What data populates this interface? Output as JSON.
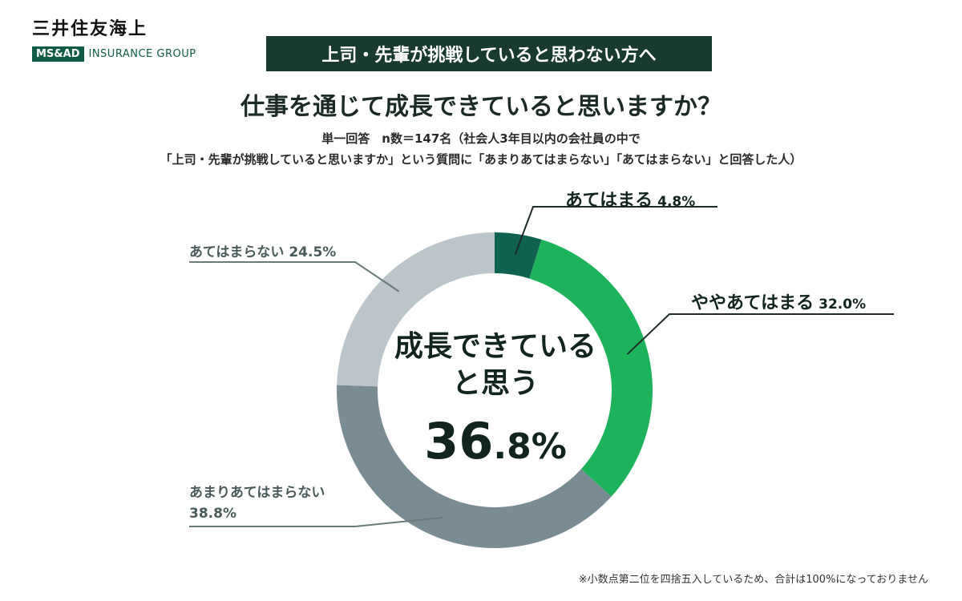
{
  "brand": {
    "name_jp": "三井住友海上",
    "logo_box": "MS&AD",
    "group": "INSURANCE GROUP"
  },
  "banner": "上司・先輩が挑戦していると思わない方へ",
  "question": "仕事を通じて成長できていると思いますか？",
  "subtitle_1": "単一回答　n数＝147名（社会人3年目以内の会社員の中で",
  "subtitle_2": "「上司・先輩が挑戦していると思いますか」という質問に「あまりあてはまらない」「あてはまらない」と回答した人）",
  "center": {
    "line1": "成長できている",
    "line2": "と思う",
    "value_int": "36",
    "value_dec": ".8%"
  },
  "footnote": "※小数点第二位を四捨五入しているため、合計は100%になっておりません",
  "chart_data": {
    "type": "pie",
    "donut": true,
    "categories": [
      "あてはまる",
      "ややあてはまる",
      "あまりあてはまらない",
      "あてはまらない"
    ],
    "values": [
      4.8,
      32.0,
      38.8,
      24.5
    ],
    "value_labels": [
      "4.8%",
      "32.0%",
      "38.8%",
      "24.5%"
    ],
    "colors": [
      "#0f6150",
      "#1db35a",
      "#7a8c93",
      "#bcc5c9"
    ],
    "start": "top",
    "direction": "clockwise"
  }
}
